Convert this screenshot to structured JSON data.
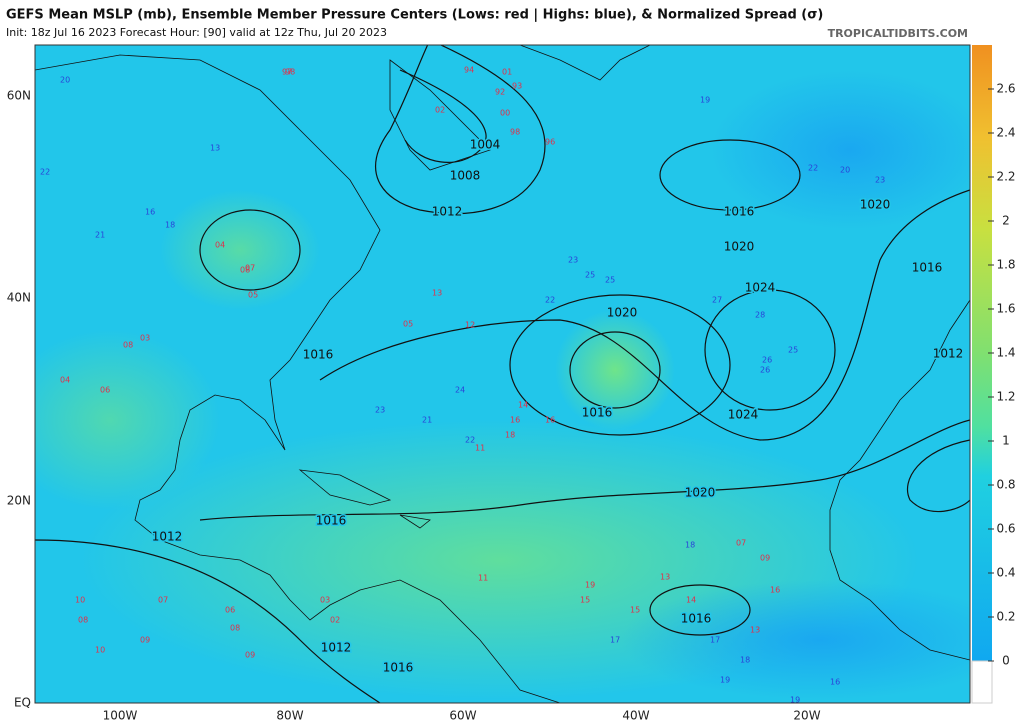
{
  "header": {
    "title": "GEFS Mean MSLP (mb), Ensemble Member Pressure Centers (Lows: red | Highs: blue), & Normalized Spread (σ)",
    "subtitle": "Init: 18z Jul 16 2023   Forecast Hour: [90]   valid at 12z Thu, Jul 20 2023",
    "credit": "TROPICALTIDBITS.COM"
  },
  "axes": {
    "lat_labels": [
      "60N",
      "40N",
      "20N",
      "EQ"
    ],
    "lon_labels": [
      "100W",
      "80W",
      "60W",
      "40W",
      "20W"
    ]
  },
  "colorbar": {
    "ticks": [
      0,
      0.2,
      0.4,
      0.6,
      0.8,
      1,
      1.2,
      1.4,
      1.6,
      1.8,
      2,
      2.2,
      2.4,
      2.6
    ]
  },
  "isobar_labels": [
    "1004",
    "1008",
    "1012",
    "1016",
    "1020",
    "1016",
    "1024",
    "1024",
    "1020",
    "1016",
    "1020",
    "1020",
    "1016",
    "1012",
    "1016",
    "1012",
    "1012",
    "1016",
    "1016"
  ],
  "lows": [
    "97",
    "98",
    "94",
    "93",
    "92",
    "01",
    "02",
    "00",
    "98",
    "96",
    "04",
    "07",
    "08",
    "05",
    "13",
    "12",
    "11",
    "05",
    "08",
    "03",
    "06",
    "04",
    "16",
    "18",
    "14",
    "16",
    "11",
    "13",
    "07",
    "09",
    "15",
    "14",
    "15",
    "13",
    "19",
    "16",
    "10",
    "08",
    "09",
    "07",
    "06",
    "08",
    "09",
    "03",
    "02",
    "10"
  ],
  "highs": [
    "20",
    "22",
    "21",
    "13",
    "16",
    "18",
    "23",
    "22",
    "24",
    "25",
    "23",
    "22",
    "21",
    "26",
    "27",
    "28",
    "25",
    "26",
    "20",
    "22",
    "23",
    "19",
    "18",
    "17",
    "19",
    "16",
    "17",
    "18",
    "19",
    "25"
  ]
}
